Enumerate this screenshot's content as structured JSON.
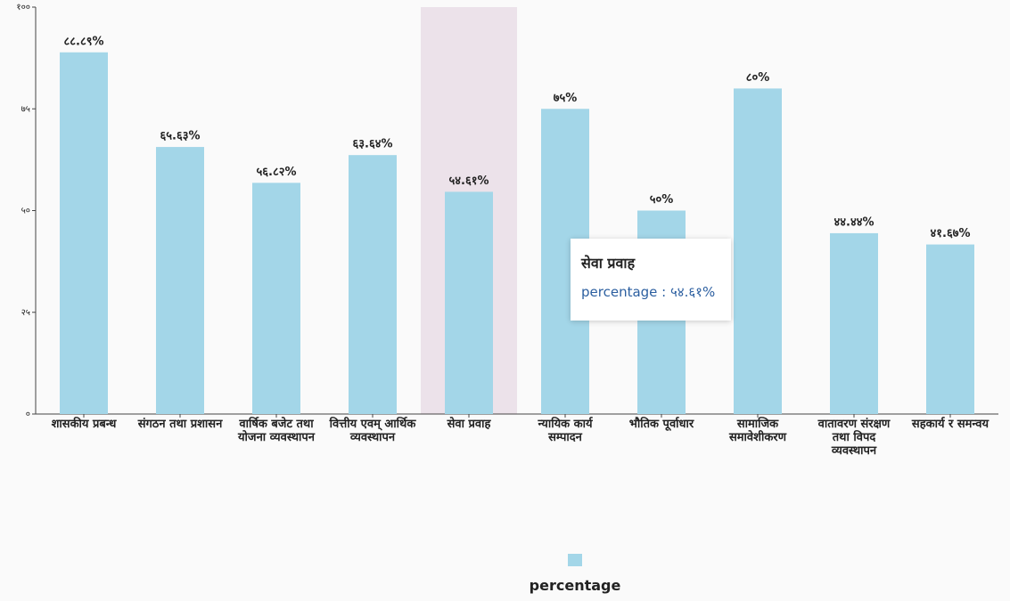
{
  "chart_data": {
    "type": "bar",
    "categories": [
      "शासकीय प्रबन्ध",
      "संगठन तथा प्रशासन",
      "वार्षिक बजेट तथा योजना व्यवस्थापन",
      "वित्तीय एवम् आर्थिक व्यवस्थापन",
      "सेवा प्रवाह",
      "न्यायिक कार्य सम्पादन",
      "भौतिक पूर्वाधार",
      "सामाजिक समावेशीकरण",
      "वातावरण संरक्षण तथा विपद व्यवस्थापन",
      "सहकार्य र समन्वय"
    ],
    "series": [
      {
        "name": "percentage",
        "color": "#a3d6e8",
        "values": [
          88.89,
          65.63,
          56.82,
          63.64,
          54.61,
          75,
          50,
          80,
          44.44,
          41.67
        ],
        "value_labels": [
          "८८.८९%",
          "६५.६३%",
          "५६.८२%",
          "६३.६४%",
          "५४.६१%",
          "७५%",
          "५०%",
          "८०%",
          "४४.४४%",
          "४१.६७%"
        ]
      }
    ],
    "ylim": [
      0,
      100
    ],
    "yticks": [
      {
        "value": 0,
        "label": "०"
      },
      {
        "value": 25,
        "label": "२५"
      },
      {
        "value": 50,
        "label": "५०"
      },
      {
        "value": 75,
        "label": "७५"
      },
      {
        "value": 100,
        "label": "१००"
      }
    ],
    "tooltip": {
      "title": "सेवा प्रवाह",
      "text": "percentage : ५४.६१%"
    }
  }
}
